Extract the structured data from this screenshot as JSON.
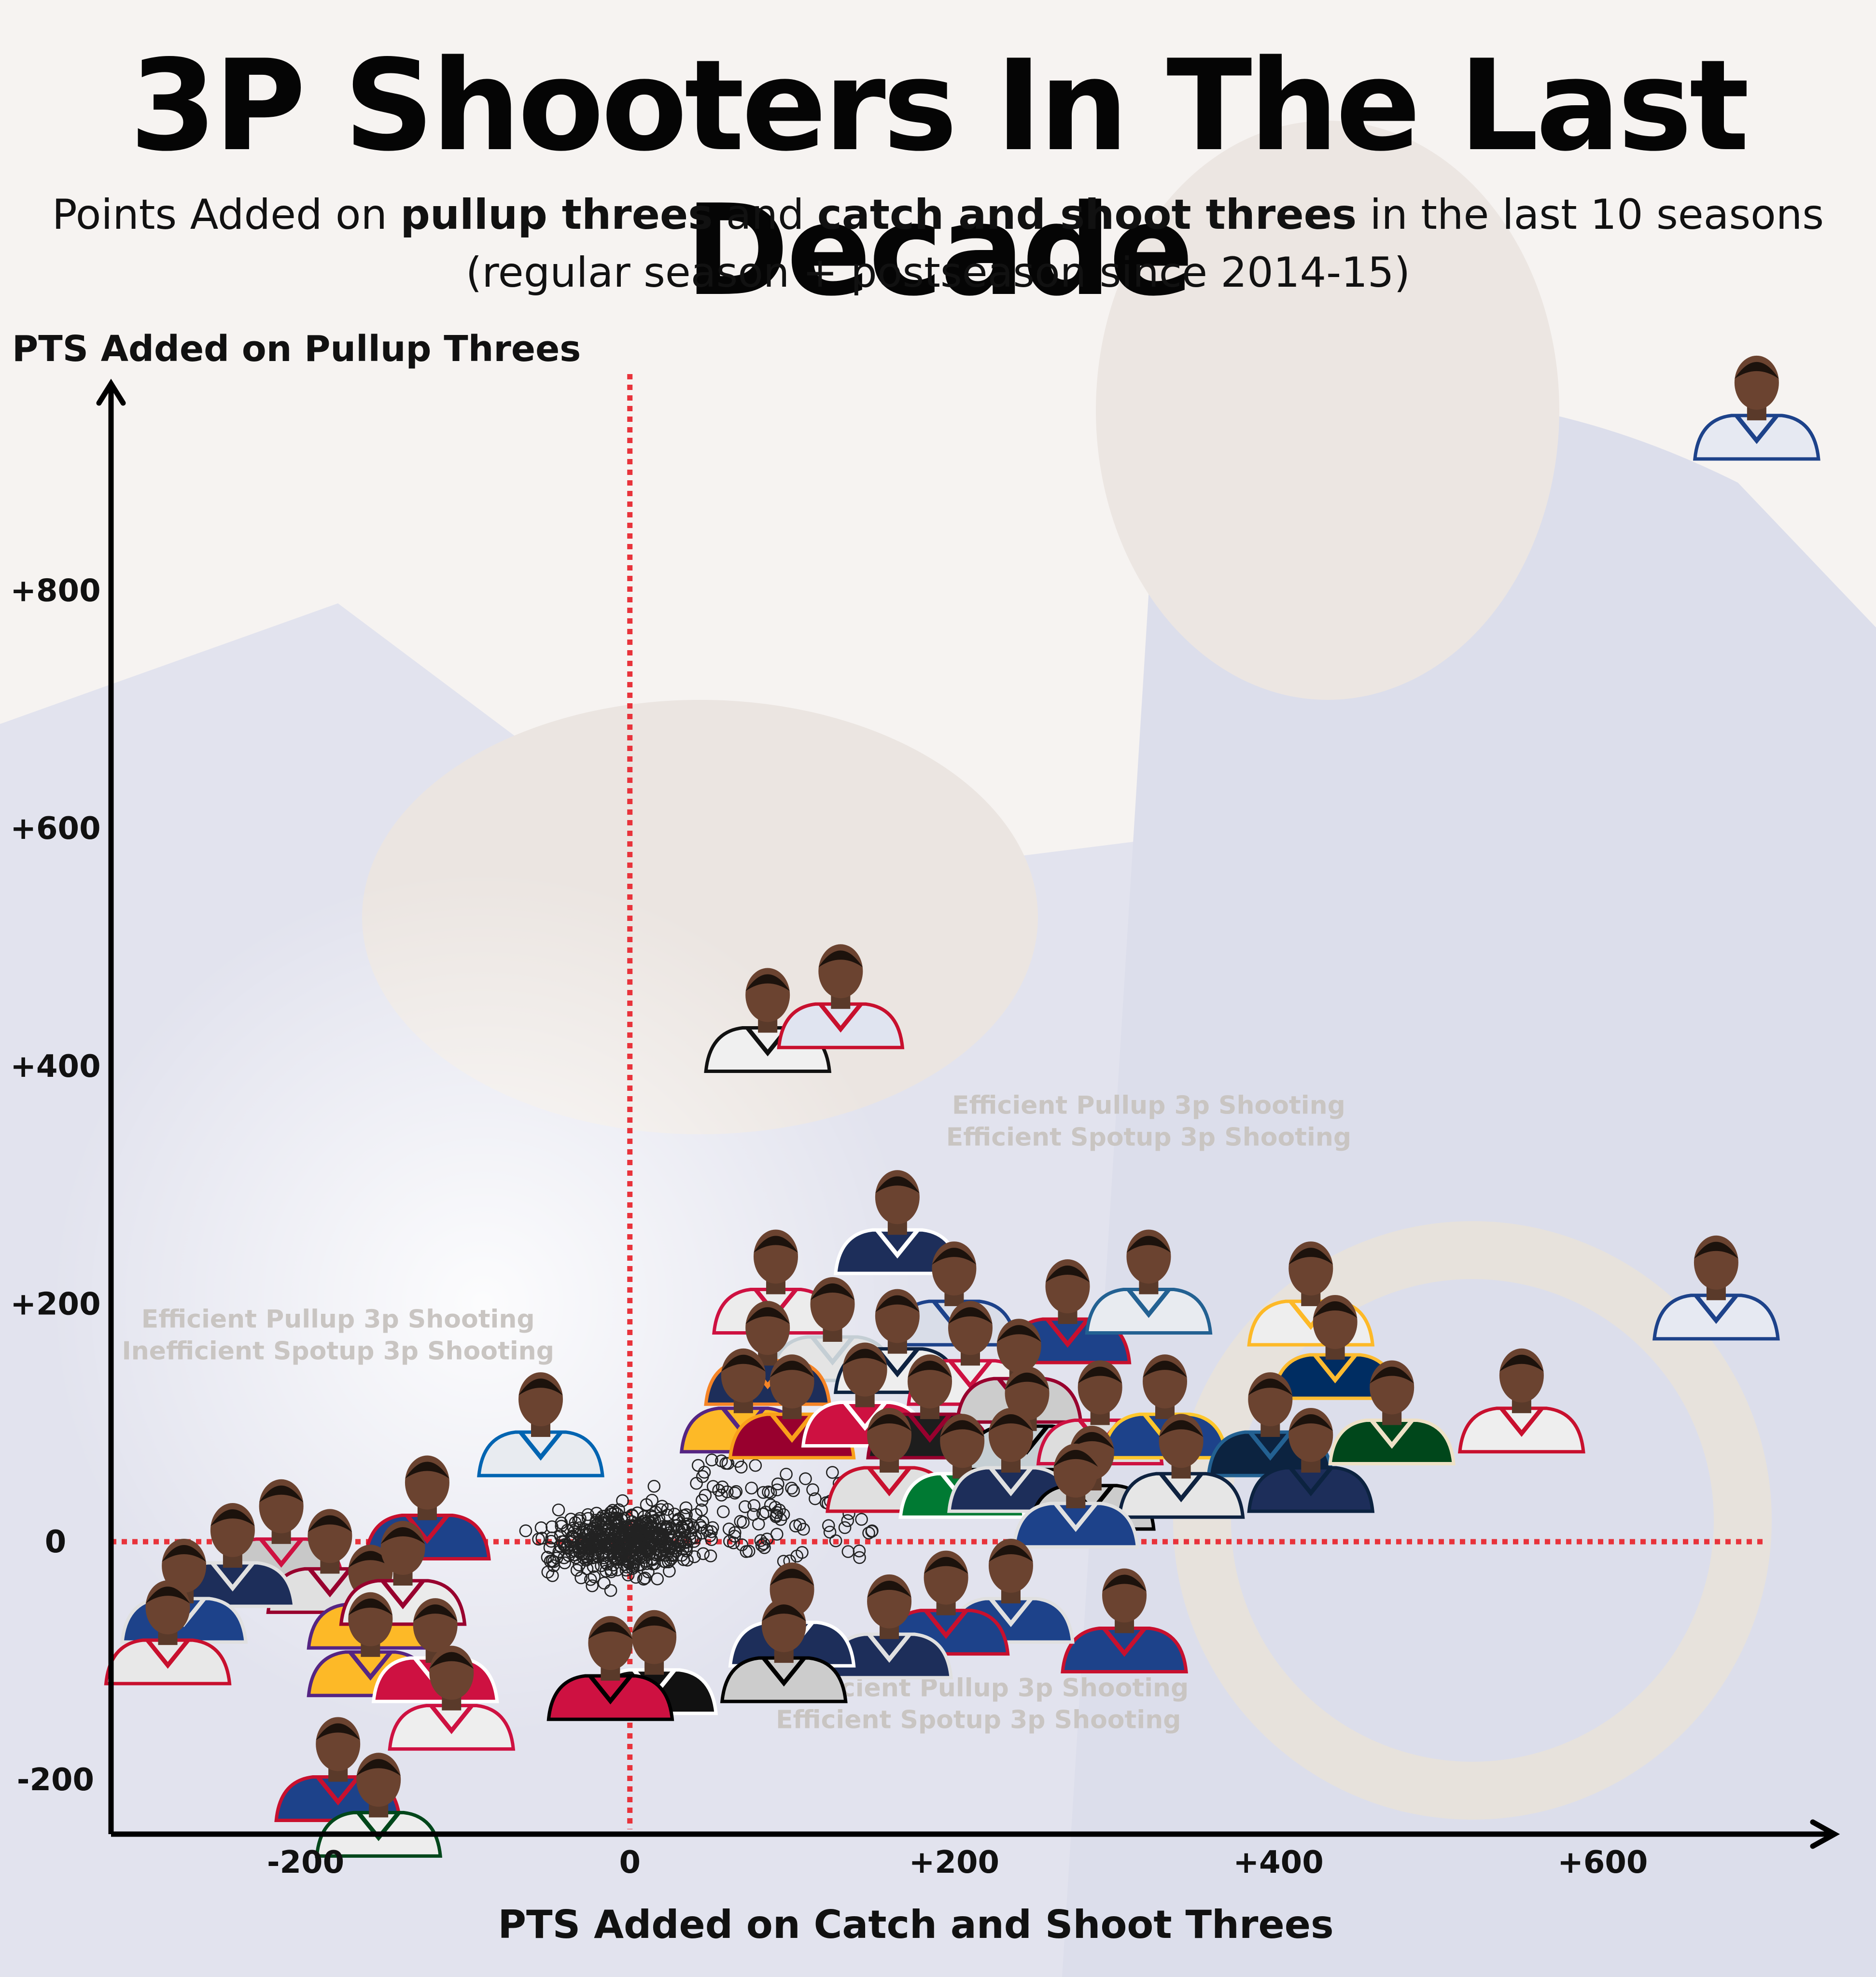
{
  "title": "3P Shooters In The Last Decade",
  "subtitle": {
    "pre": "Points Added on ",
    "b1": "pullup threes",
    "mid": " and ",
    "b2": "catch and shoot threes",
    "post": " in the last 10 seasons",
    "line2": "(regular season + postseason since 2014-15)"
  },
  "chart_data": {
    "type": "scatter",
    "xlabel": "PTS Added on Catch and Shoot Threes",
    "ylabel": "PTS Added on Pullup Threes",
    "xlim": [
      -320,
      740
    ],
    "ylim": [
      -250,
      980
    ],
    "x_ticks": [
      {
        "value": -200,
        "label": "-200"
      },
      {
        "value": 0,
        "label": "0"
      },
      {
        "value": 200,
        "label": "+200"
      },
      {
        "value": 400,
        "label": "+400"
      },
      {
        "value": 600,
        "label": "+600"
      }
    ],
    "y_ticks": [
      {
        "value": -200,
        "label": "-200"
      },
      {
        "value": 0,
        "label": "0"
      },
      {
        "value": 200,
        "label": "+200"
      },
      {
        "value": 400,
        "label": "+400"
      },
      {
        "value": 600,
        "label": "+600"
      },
      {
        "value": 800,
        "label": "+800"
      }
    ],
    "reference_lines": {
      "x": 0,
      "y": 0,
      "color": "#e8333b",
      "style": "dotted"
    },
    "quadrant_labels": [
      {
        "x": 320,
        "y": 360,
        "lines": [
          "Efficient Pullup 3p Shooting",
          "Efficient Spotup 3p Shooting"
        ]
      },
      {
        "x": -180,
        "y": 180,
        "lines": [
          "Efficient Pullup 3p Shooting",
          "Inefficient Spotup 3p Shooting"
        ]
      },
      {
        "x": 215,
        "y": -130,
        "lines": [
          "Inefficient Pullup 3p Shooting",
          "Efficient Spotup 3p Shooting"
        ]
      }
    ],
    "player_markers": [
      {
        "x": 695,
        "y": 935,
        "jersey": "#e6e9f2",
        "trim": "#1d428a"
      },
      {
        "x": 85,
        "y": 420,
        "jersey": "#f0f0f0",
        "trim": "#111111"
      },
      {
        "x": 130,
        "y": 440,
        "jersey": "#e0e4f0",
        "trim": "#c8102e"
      },
      {
        "x": 165,
        "y": 250,
        "jersey": "#1d2e5a",
        "trim": "#ffffff"
      },
      {
        "x": 90,
        "y": 200,
        "jersey": "#ececec",
        "trim": "#ce1141"
      },
      {
        "x": 200,
        "y": 190,
        "jersey": "#d9dde8",
        "trim": "#1d428a"
      },
      {
        "x": 270,
        "y": 175,
        "jersey": "#1d428a",
        "trim": "#c8102e"
      },
      {
        "x": 320,
        "y": 200,
        "jersey": "#e8ebf0",
        "trim": "#236192"
      },
      {
        "x": 420,
        "y": 190,
        "jersey": "#eeeeee",
        "trim": "#fdb927"
      },
      {
        "x": 670,
        "y": 195,
        "jersey": "#e6e9f2",
        "trim": "#1d428a"
      },
      {
        "x": 435,
        "y": 145,
        "jersey": "#002d62",
        "trim": "#fdbb30"
      },
      {
        "x": 550,
        "y": 100,
        "jersey": "#eeeeee",
        "trim": "#c8102e"
      },
      {
        "x": 125,
        "y": 160,
        "jersey": "#e4e4e4",
        "trim": "#c4ced4"
      },
      {
        "x": 85,
        "y": 140,
        "jersey": "#1d2e5a",
        "trim": "#f58426"
      },
      {
        "x": 165,
        "y": 150,
        "jersey": "#eeeeee",
        "trim": "#0e2240"
      },
      {
        "x": 210,
        "y": 140,
        "jersey": "#eeeeee",
        "trim": "#ce1141"
      },
      {
        "x": 240,
        "y": 125,
        "jersey": "#cccccc",
        "trim": "#98002e"
      },
      {
        "x": 70,
        "y": 100,
        "jersey": "#fdb927",
        "trim": "#552583"
      },
      {
        "x": 100,
        "y": 95,
        "jersey": "#98002e",
        "trim": "#f9a01b"
      },
      {
        "x": 145,
        "y": 105,
        "jersey": "#ce1141",
        "trim": "#ffffff"
      },
      {
        "x": 185,
        "y": 95,
        "jersey": "#1d1d1d",
        "trim": "#98002e"
      },
      {
        "x": 245,
        "y": 85,
        "jersey": "#c6cfd4",
        "trim": "#000000"
      },
      {
        "x": 290,
        "y": 90,
        "jersey": "#dddddd",
        "trim": "#ce1141"
      },
      {
        "x": 330,
        "y": 95,
        "jersey": "#1d428a",
        "trim": "#ffc72c"
      },
      {
        "x": 395,
        "y": 80,
        "jersey": "#0c2340",
        "trim": "#236192"
      },
      {
        "x": 470,
        "y": 90,
        "jersey": "#00471b",
        "trim": "#eee1c6"
      },
      {
        "x": 160,
        "y": 50,
        "jersey": "#e0e0e0",
        "trim": "#c8102e"
      },
      {
        "x": 205,
        "y": 45,
        "jersey": "#007a33",
        "trim": "#ffffff"
      },
      {
        "x": 235,
        "y": 50,
        "jersey": "#1d2e5a",
        "trim": "#e0e0e0"
      },
      {
        "x": 285,
        "y": 35,
        "jersey": "#cccccc",
        "trim": "#000000"
      },
      {
        "x": 340,
        "y": 45,
        "jersey": "#e6e6e6",
        "trim": "#0e2240"
      },
      {
        "x": 420,
        "y": 50,
        "jersey": "#1d2e5a",
        "trim": "#0c2340"
      },
      {
        "x": 275,
        "y": 20,
        "jersey": "#1d428a",
        "trim": "#e0e0e0"
      },
      {
        "x": 305,
        "y": -85,
        "jersey": "#1d428a",
        "trim": "#c8102e"
      },
      {
        "x": 235,
        "y": -60,
        "jersey": "#1d428a",
        "trim": "#e0e0e0"
      },
      {
        "x": 195,
        "y": -70,
        "jersey": "#1d428a",
        "trim": "#c8102e"
      },
      {
        "x": 160,
        "y": -90,
        "jersey": "#1d2e5a",
        "trim": "#e0e0e0"
      },
      {
        "x": 100,
        "y": -80,
        "jersey": "#1d2e5a",
        "trim": "#ffffff"
      },
      {
        "x": 95,
        "y": -110,
        "jersey": "#cccccc",
        "trim": "#000000"
      },
      {
        "x": 15,
        "y": -120,
        "jersey": "#111111",
        "trim": "#ffffff"
      },
      {
        "x": -12,
        "y": -125,
        "jersey": "#ce1141",
        "trim": "#000000"
      },
      {
        "x": -55,
        "y": 80,
        "jersey": "#e8ebf0",
        "trim": "#0064b1"
      },
      {
        "x": -125,
        "y": 10,
        "jersey": "#1d428a",
        "trim": "#c8102e"
      },
      {
        "x": -215,
        "y": -10,
        "jersey": "#c8c8c8",
        "trim": "#ce1141"
      },
      {
        "x": -185,
        "y": -35,
        "jersey": "#e0e0e0",
        "trim": "#98002e"
      },
      {
        "x": -245,
        "y": -30,
        "jersey": "#1d2e5a",
        "trim": "#e0e0e0"
      },
      {
        "x": -275,
        "y": -60,
        "jersey": "#1d428a",
        "trim": "#e0e0e0"
      },
      {
        "x": -285,
        "y": -95,
        "jersey": "#e8e8e8",
        "trim": "#c8102e"
      },
      {
        "x": -160,
        "y": -65,
        "jersey": "#fdb927",
        "trim": "#552583"
      },
      {
        "x": -140,
        "y": -45,
        "jersey": "#ebebeb",
        "trim": "#98002e"
      },
      {
        "x": -160,
        "y": -105,
        "jersey": "#fdb927",
        "trim": "#552583"
      },
      {
        "x": -120,
        "y": -110,
        "jersey": "#ce1141",
        "trim": "#ffffff"
      },
      {
        "x": -110,
        "y": -150,
        "jersey": "#eeeeee",
        "trim": "#ce1141"
      },
      {
        "x": -180,
        "y": -210,
        "jersey": "#1d428a",
        "trim": "#c8102e"
      },
      {
        "x": -155,
        "y": -240,
        "jersey": "#ededed",
        "trim": "#00471b"
      }
    ]
  }
}
